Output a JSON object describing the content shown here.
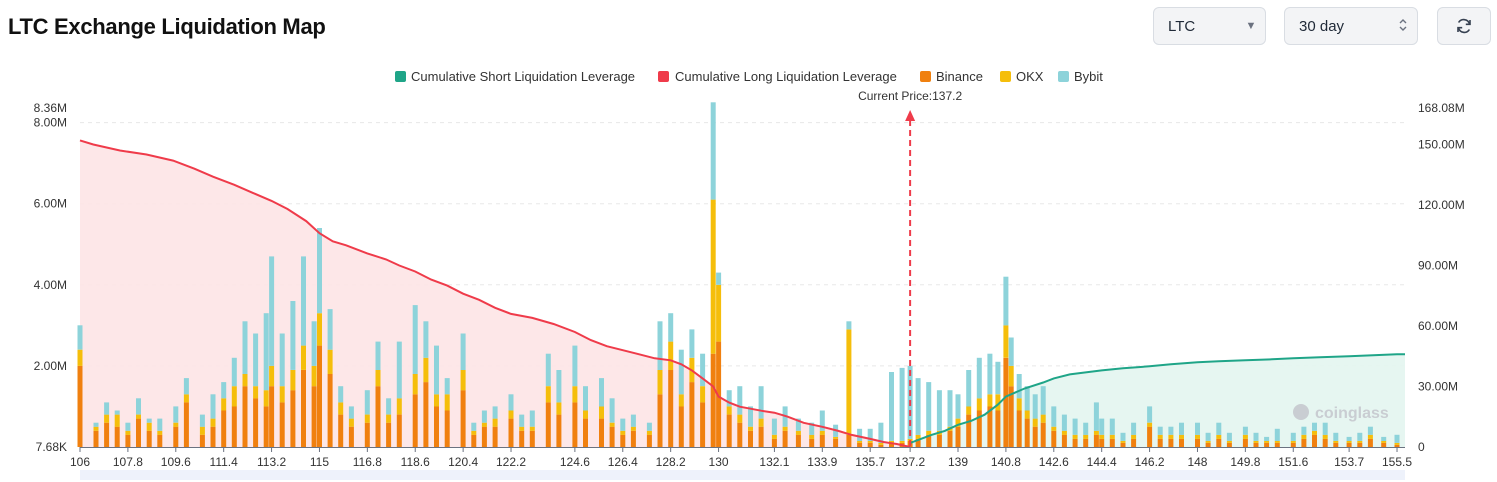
{
  "header": {
    "title": "LTC Exchange Liquidation Map",
    "coin_select": "LTC",
    "period_select": "30 day"
  },
  "colors": {
    "binance": "#f0800f",
    "okx": "#f5be0b",
    "bybit": "#8dd3da",
    "long_line": "#ef3b4a",
    "short_line": "#1fa588",
    "long_area": "#fde4e6",
    "short_area": "#e3f5ef"
  },
  "chart_data": {
    "type": "bar",
    "title": "LTC Exchange Liquidation Map",
    "current_price_label": "Current Price:137.2",
    "current_price": 137.2,
    "watermark": "coinglass",
    "legend": [
      "Cumulative Short Liquidation Leverage",
      "Cumulative Long Liquidation Leverage",
      "Binance",
      "OKX",
      "Bybit"
    ],
    "x_ticks": [
      "106",
      "107.8",
      "109.6",
      "111.4",
      "113.2",
      "115",
      "116.8",
      "118.6",
      "120.4",
      "122.2",
      "124.6",
      "126.4",
      "128.2",
      "130",
      "132.1",
      "133.9",
      "135.7",
      "137.2",
      "139",
      "140.8",
      "142.6",
      "144.4",
      "146.2",
      "148",
      "149.8",
      "151.6",
      "153.7",
      "155.5"
    ],
    "x_range": [
      106,
      155.8
    ],
    "y_left_ticks": [
      "7.68K",
      "2.00M",
      "4.00M",
      "6.00M",
      "8.00M",
      "8.36M"
    ],
    "y_left_range": [
      0,
      8.36
    ],
    "y_right_ticks": [
      "0",
      "30.00M",
      "60.00M",
      "90.00M",
      "120.00M",
      "150.00M",
      "168.08M"
    ],
    "y_right_range": [
      0,
      168.08
    ],
    "bars": {
      "price": [
        106.0,
        106.6,
        107.0,
        107.4,
        107.8,
        108.2,
        108.6,
        109.0,
        109.6,
        110.0,
        110.6,
        111.0,
        111.4,
        111.8,
        112.2,
        112.6,
        113.0,
        113.2,
        113.6,
        114.0,
        114.4,
        114.8,
        115.0,
        115.4,
        115.8,
        116.2,
        116.8,
        117.2,
        117.6,
        118.0,
        118.6,
        119.0,
        119.4,
        119.8,
        120.4,
        120.8,
        121.2,
        121.6,
        122.2,
        122.6,
        123.0,
        123.6,
        124.0,
        124.6,
        125.0,
        125.6,
        126.0,
        126.4,
        126.8,
        127.4,
        127.8,
        128.2,
        128.6,
        129.0,
        129.4,
        129.8,
        130.0,
        130.4,
        130.8,
        131.2,
        131.6,
        132.1,
        132.5,
        133.0,
        133.5,
        133.9,
        134.4,
        134.9,
        135.3,
        135.7,
        136.1,
        136.5,
        136.9,
        137.2,
        137.5,
        137.9,
        138.3,
        138.7,
        139.0,
        139.4,
        139.8,
        140.2,
        140.5,
        140.8,
        141.0,
        141.3,
        141.6,
        141.9,
        142.2,
        142.6,
        143.0,
        143.4,
        143.8,
        144.2,
        144.4,
        144.8,
        145.2,
        145.6,
        146.2,
        146.6,
        147.0,
        147.4,
        148.0,
        148.4,
        148.8,
        149.2,
        149.8,
        150.2,
        150.6,
        151.0,
        151.6,
        152.0,
        152.4,
        152.8,
        153.2,
        153.7,
        154.1,
        154.5,
        155.0,
        155.5
      ],
      "binance": [
        2.0,
        0.4,
        0.6,
        0.5,
        0.3,
        0.7,
        0.4,
        0.3,
        0.5,
        1.1,
        0.3,
        0.5,
        0.9,
        1.0,
        1.5,
        1.2,
        1.0,
        1.5,
        1.1,
        1.4,
        1.9,
        1.5,
        2.5,
        1.8,
        0.8,
        0.5,
        0.6,
        1.5,
        0.6,
        0.8,
        1.3,
        1.6,
        1.0,
        0.9,
        1.4,
        0.3,
        0.5,
        0.5,
        0.7,
        0.4,
        0.4,
        1.1,
        0.8,
        1.1,
        0.7,
        0.7,
        0.5,
        0.3,
        0.4,
        0.3,
        1.3,
        1.9,
        1.0,
        1.6,
        1.1,
        2.3,
        2.6,
        0.8,
        0.6,
        0.4,
        0.5,
        0.2,
        0.4,
        0.3,
        0.2,
        0.3,
        0.2,
        0.3,
        0.1,
        0.1,
        0.05,
        0.1,
        0.1,
        0.15,
        0.2,
        0.3,
        0.3,
        0.4,
        0.5,
        0.8,
        0.9,
        1.0,
        0.9,
        2.2,
        1.5,
        0.9,
        0.7,
        0.5,
        0.6,
        0.4,
        0.3,
        0.2,
        0.2,
        0.3,
        0.2,
        0.2,
        0.1,
        0.2,
        0.5,
        0.2,
        0.2,
        0.2,
        0.2,
        0.1,
        0.2,
        0.1,
        0.2,
        0.1,
        0.1,
        0.1,
        0.1,
        0.2,
        0.3,
        0.2,
        0.1,
        0.1,
        0.1,
        0.2,
        0.1,
        0.05
      ],
      "okx": [
        0.4,
        0.1,
        0.2,
        0.3,
        0.1,
        0.1,
        0.2,
        0.1,
        0.1,
        0.2,
        0.2,
        0.2,
        0.3,
        0.5,
        0.3,
        0.3,
        0.4,
        0.5,
        0.4,
        0.5,
        0.6,
        0.5,
        0.8,
        0.6,
        0.3,
        0.2,
        0.2,
        0.4,
        0.2,
        0.4,
        0.5,
        0.6,
        0.3,
        0.4,
        0.5,
        0.1,
        0.1,
        0.2,
        0.2,
        0.1,
        0.1,
        0.4,
        0.3,
        0.4,
        0.2,
        0.3,
        0.1,
        0.1,
        0.1,
        0.1,
        0.6,
        0.7,
        0.3,
        0.6,
        0.4,
        3.8,
        1.4,
        0.2,
        0.2,
        0.1,
        0.2,
        0.1,
        0.1,
        0.1,
        0.1,
        0.1,
        0.05,
        2.6,
        0.05,
        0.05,
        0.05,
        0.05,
        0.05,
        0.05,
        0.1,
        0.1,
        0.1,
        0.1,
        0.2,
        0.2,
        0.3,
        0.3,
        0.4,
        0.8,
        0.5,
        0.3,
        0.2,
        0.2,
        0.2,
        0.1,
        0.1,
        0.1,
        0.1,
        0.1,
        0.1,
        0.1,
        0.05,
        0.1,
        0.1,
        0.1,
        0.1,
        0.1,
        0.1,
        0.05,
        0.1,
        0.05,
        0.1,
        0.05,
        0.05,
        0.05,
        0.05,
        0.1,
        0.1,
        0.1,
        0.05,
        0.05,
        0.05,
        0.1,
        0.05,
        0.05
      ],
      "bybit": [
        0.6,
        0.1,
        0.3,
        0.1,
        0.2,
        0.4,
        0.1,
        0.3,
        0.4,
        0.4,
        0.3,
        0.6,
        0.4,
        0.7,
        1.3,
        1.3,
        1.9,
        2.7,
        1.3,
        1.7,
        2.2,
        1.1,
        2.1,
        1.0,
        0.4,
        0.3,
        0.6,
        0.7,
        0.4,
        1.4,
        1.7,
        0.9,
        1.2,
        0.4,
        0.9,
        0.2,
        0.3,
        0.3,
        0.4,
        0.3,
        0.4,
        0.8,
        0.8,
        1.0,
        0.6,
        0.7,
        0.6,
        0.3,
        0.3,
        0.2,
        1.2,
        0.7,
        1.1,
        0.7,
        0.8,
        2.4,
        0.3,
        0.4,
        0.7,
        0.5,
        0.8,
        0.4,
        0.5,
        0.3,
        0.3,
        0.5,
        0.3,
        0.2,
        0.3,
        0.3,
        0.5,
        1.7,
        1.8,
        1.8,
        1.4,
        1.2,
        1.0,
        0.9,
        0.6,
        0.9,
        1.0,
        1.0,
        0.8,
        1.2,
        0.7,
        0.6,
        0.6,
        0.6,
        0.7,
        0.5,
        0.4,
        0.4,
        0.3,
        0.7,
        0.4,
        0.4,
        0.2,
        0.3,
        0.4,
        0.2,
        0.2,
        0.3,
        0.3,
        0.2,
        0.3,
        0.2,
        0.2,
        0.2,
        0.1,
        0.3,
        0.2,
        0.2,
        0.2,
        0.3,
        0.2,
        0.1,
        0.2,
        0.2,
        0.1,
        0.2
      ]
    },
    "cumulative_long": {
      "price": [
        106.0,
        106.5,
        107.5,
        108.5,
        109.5,
        110.3,
        111.0,
        111.8,
        112.5,
        113.2,
        113.8,
        114.5,
        115.0,
        115.5,
        116.0,
        116.8,
        117.5,
        118.0,
        118.6,
        119.2,
        119.8,
        120.4,
        121.0,
        121.6,
        122.2,
        123.0,
        123.8,
        124.6,
        125.2,
        125.8,
        126.4,
        127.0,
        127.6,
        128.2,
        128.6,
        129.0,
        129.4,
        129.8,
        130.0,
        130.4,
        130.8,
        131.2,
        131.6,
        132.1,
        132.6,
        133.2,
        133.9,
        134.5,
        135.0,
        135.7,
        136.2,
        136.7,
        137.2
      ],
      "value": [
        152,
        150,
        147,
        145,
        142,
        138,
        134,
        130,
        126,
        122,
        118,
        112,
        106,
        102,
        100,
        96,
        93,
        90,
        87,
        83,
        80,
        76,
        73,
        69,
        66,
        64,
        61,
        57,
        53,
        50,
        48,
        46,
        44,
        43,
        41,
        38,
        34,
        30,
        25,
        22,
        20,
        19,
        18,
        17,
        15,
        12,
        10,
        8,
        6,
        4,
        2.5,
        1.5,
        0
      ]
    },
    "cumulative_short": {
      "price": [
        137.2,
        137.6,
        138.0,
        138.5,
        139.0,
        139.5,
        140.0,
        140.5,
        140.8,
        141.5,
        142.2,
        142.6,
        143.2,
        143.8,
        144.4,
        145.2,
        146.2,
        147.0,
        148.0,
        148.8,
        149.8,
        150.8,
        151.6,
        152.6,
        153.7,
        154.6,
        155.5,
        155.8
      ],
      "value": [
        2,
        4,
        6,
        8,
        11,
        13,
        16,
        21,
        25,
        29,
        32,
        34,
        36,
        37,
        38,
        39,
        40,
        41,
        42,
        42.5,
        43,
        43.5,
        44,
        44.5,
        45,
        45.5,
        46,
        46
      ]
    }
  }
}
